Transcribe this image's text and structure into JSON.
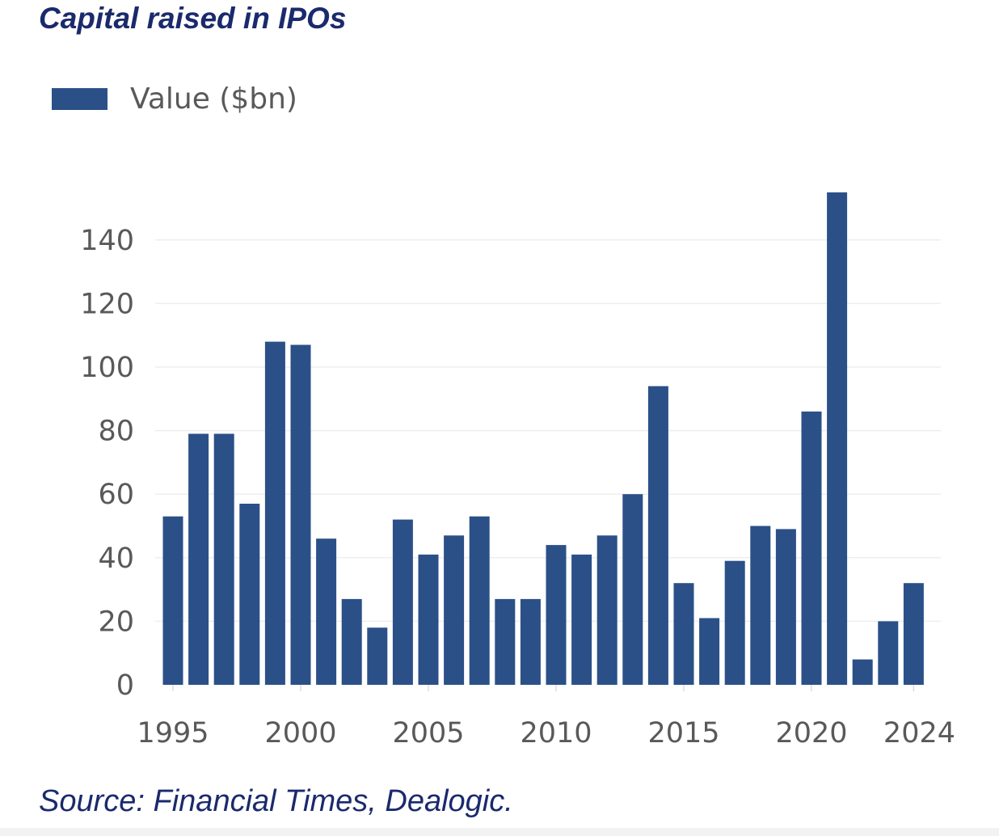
{
  "title": "Capital raised in IPOs",
  "source": "Source: Financial Times, Dealogic.",
  "colors": {
    "bar": "#2b5088",
    "title": "#1a2a6c",
    "tick": "#595959",
    "grid": "#eeeeee"
  },
  "chart_data": {
    "type": "bar",
    "legend_position": "top-left",
    "grid": true,
    "xlabel": "",
    "ylabel": "",
    "ylim": [
      0,
      155
    ],
    "yticks": [
      0,
      20,
      40,
      60,
      80,
      100,
      120,
      140
    ],
    "xticks": [
      1995,
      2000,
      2005,
      2010,
      2015,
      2020,
      2024
    ],
    "categories": [
      1995,
      1996,
      1997,
      1998,
      1999,
      2000,
      2001,
      2002,
      2003,
      2004,
      2005,
      2006,
      2007,
      2008,
      2009,
      2010,
      2011,
      2012,
      2013,
      2014,
      2015,
      2016,
      2017,
      2018,
      2019,
      2020,
      2021,
      2022,
      2023,
      2024
    ],
    "series": [
      {
        "name": "Value ($bn)",
        "values": [
          53,
          79,
          79,
          57,
          108,
          107,
          46,
          27,
          18,
          52,
          41,
          47,
          53,
          27,
          27,
          44,
          41,
          47,
          60,
          94,
          32,
          21,
          39,
          50,
          49,
          86,
          155,
          8,
          20,
          32
        ]
      }
    ]
  }
}
